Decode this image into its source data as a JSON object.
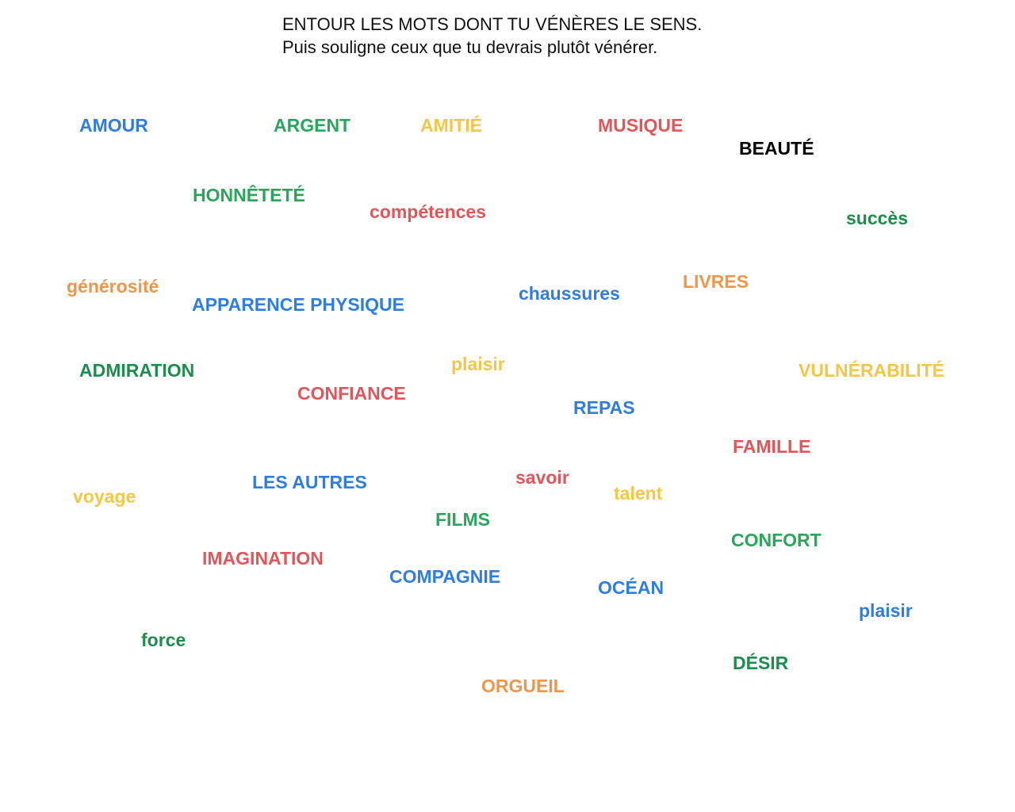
{
  "instructions": {
    "line1": "ENTOUR LES MOTS DONT TU VÉNÈRES LE SENS.",
    "line2": "Puis souligne ceux que tu devrais plutôt vénérer."
  },
  "colors": {
    "blue": "#2f7de1",
    "green": "#2aa65c",
    "darkgreen": "#1e8c4e",
    "yellow": "#f2c744",
    "orange": "#f0964a",
    "red": "#e2555a",
    "black": "#000000"
  },
  "words": [
    {
      "text": "AMOUR",
      "color": "#2f7de1"
    },
    {
      "text": "ARGENT",
      "color": "#2aa65c"
    },
    {
      "text": "AMITIÉ",
      "color": "#f2c744"
    },
    {
      "text": "MUSIQUE",
      "color": "#e2555a"
    },
    {
      "text": "BEAUTÉ",
      "color": "#000000"
    },
    {
      "text": "HONNÊTETÉ",
      "color": "#2aa65c"
    },
    {
      "text": "compétences",
      "color": "#e2555a"
    },
    {
      "text": "succès",
      "color": "#1e8c4e"
    },
    {
      "text": "générosité",
      "color": "#f0964a"
    },
    {
      "text": "APPARENCE PHYSIQUE",
      "color": "#2f7de1"
    },
    {
      "text": "chaussures",
      "color": "#2f7de1"
    },
    {
      "text": "LIVRES",
      "color": "#f0964a"
    },
    {
      "text": "ADMIRATION",
      "color": "#1e8c4e"
    },
    {
      "text": "plaisir",
      "color": "#f2c744"
    },
    {
      "text": "VULNÉRABILITÉ",
      "color": "#f2c744"
    },
    {
      "text": "CONFIANCE",
      "color": "#e2555a"
    },
    {
      "text": "REPAS",
      "color": "#2f7de1"
    },
    {
      "text": "FAMILLE",
      "color": "#e2555a"
    },
    {
      "text": "savoir",
      "color": "#e2555a"
    },
    {
      "text": "LES AUTRES",
      "color": "#2f7de1"
    },
    {
      "text": "voyage",
      "color": "#f2c744"
    },
    {
      "text": "talent",
      "color": "#f2c744"
    },
    {
      "text": "FILMS",
      "color": "#2aa65c"
    },
    {
      "text": "CONFORT",
      "color": "#2aa65c"
    },
    {
      "text": "IMAGINATION",
      "color": "#e2555a"
    },
    {
      "text": "COMPAGNIE",
      "color": "#2f7de1"
    },
    {
      "text": "OCÉAN",
      "color": "#2f7de1"
    },
    {
      "text": "plaisir",
      "color": "#2f7de1"
    },
    {
      "text": "force",
      "color": "#1e8c4e"
    },
    {
      "text": "DÉSIR",
      "color": "#1e8c4e"
    },
    {
      "text": "ORGUEIL",
      "color": "#f0964a"
    }
  ]
}
